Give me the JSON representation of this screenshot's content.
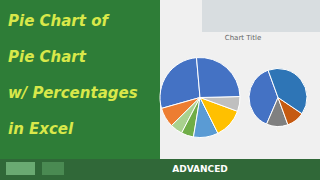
{
  "chart_data": [
    {
      "type": "pie",
      "title": "Chart Title",
      "subtitle": "ADVANCED",
      "annotations": [
        "Pie Chart of",
        "Pie Chart",
        "w/ Percentages",
        "in Excel"
      ],
      "values": [
        28,
        8,
        5,
        5,
        10,
        12,
        6,
        26
      ],
      "colors": [
        "#4472c4",
        "#ed7d31",
        "#a9d18e",
        "#70ad47",
        "#5a9bd4",
        "#ffc000",
        "#bfbfbf",
        "#4472c4"
      ]
    },
    {
      "type": "pie",
      "values": [
        38,
        12,
        10,
        40
      ],
      "colors": [
        "#4472c4",
        "#808080",
        "#c55a11",
        "#2e75b6"
      ]
    }
  ]
}
